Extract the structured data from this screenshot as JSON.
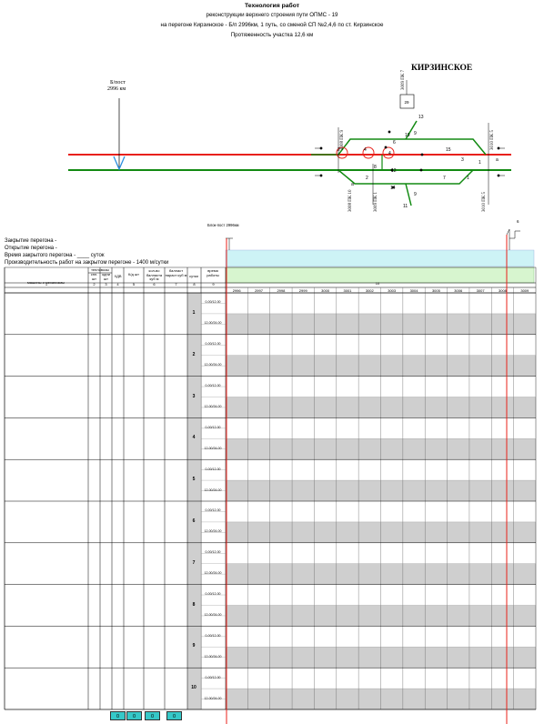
{
  "header": {
    "title": "Технология работ",
    "line1": "реконструкции верхнего строения пути ОПМС - 19",
    "line2": "на перегоне Кирзинское - Б/п 2996км, 1 путь, со сменой СП №2,4,6 по ст. Кирзинское",
    "line3": "Протяженность участка 12,6 км"
  },
  "scheme": {
    "post_label": "Б/пост",
    "post_km": "2996 км",
    "station_name": "КИРЗИНСКОЕ",
    "building_no": "29",
    "pk_labels": [
      "3009 ПК 7",
      "3008 ПК 9",
      "3010 ПК 5",
      "3008 ПК 10",
      "3009 ПК 1",
      "3010 ПК 5"
    ],
    "switch_numbers": [
      "13",
      "19",
      "15",
      "2",
      "4",
      "8",
      "2",
      "1",
      "3",
      "1",
      "7",
      "9",
      "11",
      "4",
      "6",
      "12",
      "а",
      "а",
      "9",
      "14"
    ]
  },
  "info": {
    "closure": "Закрытие перегона -",
    "opening": "Открытие перегона -",
    "duration": "Время закрытого перегона - ____ суток",
    "productivity": "Производительность работ на закрытом перегоне - 1400 м/сутки"
  },
  "grid": {
    "blockpost_label": "Блок-пост 2996км",
    "end_marker": "6",
    "col_machines": "машины и механизмы",
    "col_teplovozy": "тепловозы",
    "col_sp": "спл. шт",
    "col_odn": "одни шт",
    "col_hdv": "ХДВ",
    "col_kd": "К/д шт",
    "col_ballast_qty": "кол-во балласта куб м",
    "col_ballast_add": "балласт нараст куб м",
    "col_sutki": "сутки",
    "col_time": "время работы",
    "col_nums": [
      "1",
      "2",
      "3",
      "4",
      "5",
      "6",
      "7",
      "8",
      "9"
    ],
    "span_num": "10",
    "km": [
      "2996",
      "2997",
      "2998",
      "2999",
      "3000",
      "3001",
      "3002",
      "3003",
      "3004",
      "3005",
      "3006",
      "3007",
      "3008",
      "3009"
    ],
    "days": [
      "1",
      "2",
      "3",
      "4",
      "5",
      "6",
      "7",
      "8",
      "9",
      "10"
    ],
    "t1": "0-00/12-00",
    "t2": "12-00/24-00",
    "totals": [
      "0",
      "0",
      "0",
      "0"
    ]
  },
  "colors": {
    "red": "#e8201a",
    "green": "#128a12",
    "cyan": "#cdf3f6",
    "lime": "#d7f5cf",
    "grey": "#cfcfcf",
    "teal": "#35c8c8"
  }
}
